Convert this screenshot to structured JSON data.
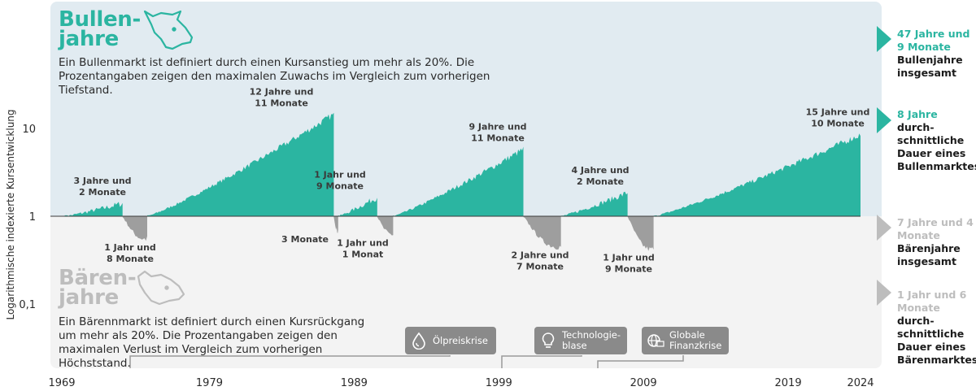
{
  "bull": {
    "title": "Bullen-\njahre",
    "description": "Ein Bullenmarkt ist definiert durch einen Kursanstieg um mehr als 20%. Die Prozentangaben zeigen den maximalen Zuwachs im Vergleich zum vorherigen Tiefstand.",
    "icon": "bull-head-icon"
  },
  "bear": {
    "title": "Bären-\njahre",
    "description": "Ein Bärennmarkt ist definiert durch einen Kursrückgang um mehr als 20%. Die Prozentangaben zeigen den maximalen Verlust im Vergleich zum vorherigen Höchststand.",
    "icon": "bear-head-icon"
  },
  "side": {
    "bull_total_value": "47 Jahre und 9 Monate",
    "bull_total_label": "Bullenjahre insgesamt",
    "bull_avg_value": "8 Jahre",
    "bull_avg_label": "durch-schnittliche Dauer eines Bullenmarktes",
    "bear_total_value": "7 Jahre und 4 Monate",
    "bear_total_label": "Bärenjahre insgesamt",
    "bear_avg_value": "1 Jahr und 6 Monate",
    "bear_avg_label": "durch-schnittliche Dauer eines Bärenmarktes"
  },
  "events": {
    "oil": {
      "label": "Ölpreiskrise",
      "icon": "oil-drop-icon"
    },
    "tech": {
      "label": "Technologie-\nblase",
      "icon": "lightbulb-icon"
    },
    "fin": {
      "label": "Globale\nFinanzkrise",
      "icon": "globe-money-icon"
    }
  },
  "colors": {
    "bull": "#2bb5a1",
    "bear": "#9e9e9e",
    "bull_panel": "#e1ebf1",
    "bear_panel": "#f3f3f3",
    "event_box": "#8a8a8a"
  },
  "chart_data": {
    "type": "area",
    "title": "",
    "xlabel": "",
    "ylabel": "Logarithmische indexierte Kursentwicklung",
    "y_scale": "log",
    "y_ticks": [
      {
        "value": 10,
        "label": "10"
      },
      {
        "value": 1,
        "label": "1"
      },
      {
        "value": 0.1,
        "label": "0,1"
      }
    ],
    "x_ticks": [
      {
        "value": 1969,
        "label": "1969"
      },
      {
        "value": 1979,
        "label": "1979"
      },
      {
        "value": 1989,
        "label": "1989"
      },
      {
        "value": 1999,
        "label": "1999"
      },
      {
        "value": 2009,
        "label": "2009"
      },
      {
        "value": 2019,
        "label": "2019"
      },
      {
        "value": 2024,
        "label": "2024"
      }
    ],
    "xlim": [
      1968.8,
      2024
    ],
    "ylim": [
      0.055,
      45
    ],
    "series": [
      {
        "kind": "bull",
        "start": 1969.0,
        "end": 1973.0,
        "peak": 1.4,
        "label": "3 Jahre und\n2 Monate"
      },
      {
        "kind": "bear",
        "start": 1973.0,
        "end": 1974.7,
        "trough": 0.55,
        "label": "1 Jahr und\n8 Monate"
      },
      {
        "kind": "bull",
        "start": 1974.7,
        "end": 1987.6,
        "peak": 14.5,
        "label": "12 Jahre und\n11 Monate"
      },
      {
        "kind": "bear",
        "start": 1987.6,
        "end": 1987.9,
        "trough": 0.68,
        "label": "3 Monate"
      },
      {
        "kind": "bull",
        "start": 1987.9,
        "end": 1990.6,
        "peak": 1.65,
        "label": "1 Jahr und\n9 Monate"
      },
      {
        "kind": "bear",
        "start": 1990.6,
        "end": 1991.7,
        "trough": 0.62,
        "label": "1 Jahr und\n1 Monat"
      },
      {
        "kind": "bull",
        "start": 1991.7,
        "end": 2000.7,
        "peak": 5.8,
        "label": "9 Jahre und\n11 Monate"
      },
      {
        "kind": "bear",
        "start": 2000.7,
        "end": 2003.3,
        "trough": 0.45,
        "label": "2 Jahre und\n7 Monate"
      },
      {
        "kind": "bull",
        "start": 2003.3,
        "end": 2007.9,
        "peak": 1.85,
        "label": "4 Jahre und\n2 Monate"
      },
      {
        "kind": "bear",
        "start": 2007.9,
        "end": 2009.7,
        "trough": 0.42,
        "label": "1 Jahr und\n9 Monate"
      },
      {
        "kind": "bull",
        "start": 2009.7,
        "end": 2024.0,
        "peak": 8.5,
        "label": "15 Jahre und\n10 Monate"
      }
    ]
  }
}
